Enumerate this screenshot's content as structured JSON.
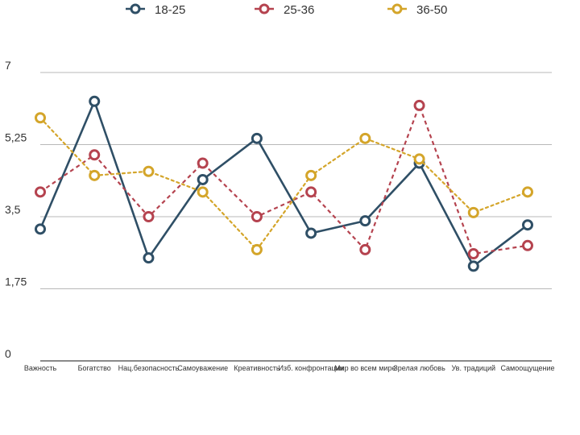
{
  "chart_data": {
    "type": "line",
    "title": "",
    "xlabel": "",
    "ylabel": "",
    "ylim": [
      0,
      7
    ],
    "yticks": [
      "0",
      "1,75",
      "3,5",
      "5,25",
      "7"
    ],
    "ytick_values": [
      0,
      1.75,
      3.5,
      5.25,
      7
    ],
    "grid": true,
    "legend_position": "top",
    "categories": [
      "Важность",
      "Богатство",
      "Нац.безопасность",
      "Самоуважение",
      "Креативность",
      "Изб. конфронтации",
      "Мир во всем мире",
      "Зрелая любовь",
      "Ув. традиций",
      "Самоощущение"
    ],
    "series": [
      {
        "name": "18-25",
        "color": "#2f4f66",
        "dash": "solid",
        "values": [
          3.2,
          6.3,
          2.5,
          4.4,
          5.4,
          3.1,
          3.4,
          4.8,
          2.3,
          3.3
        ]
      },
      {
        "name": "25-36",
        "color": "#b5434f",
        "dash": "dashed",
        "values": [
          4.1,
          5.0,
          3.5,
          4.8,
          3.5,
          4.1,
          2.7,
          6.2,
          2.6,
          2.8
        ]
      },
      {
        "name": "36-50",
        "color": "#d4a52a",
        "dash": "dotted",
        "values": [
          5.9,
          4.5,
          4.6,
          4.1,
          2.7,
          4.5,
          5.4,
          4.9,
          3.6,
          4.1
        ]
      }
    ]
  }
}
